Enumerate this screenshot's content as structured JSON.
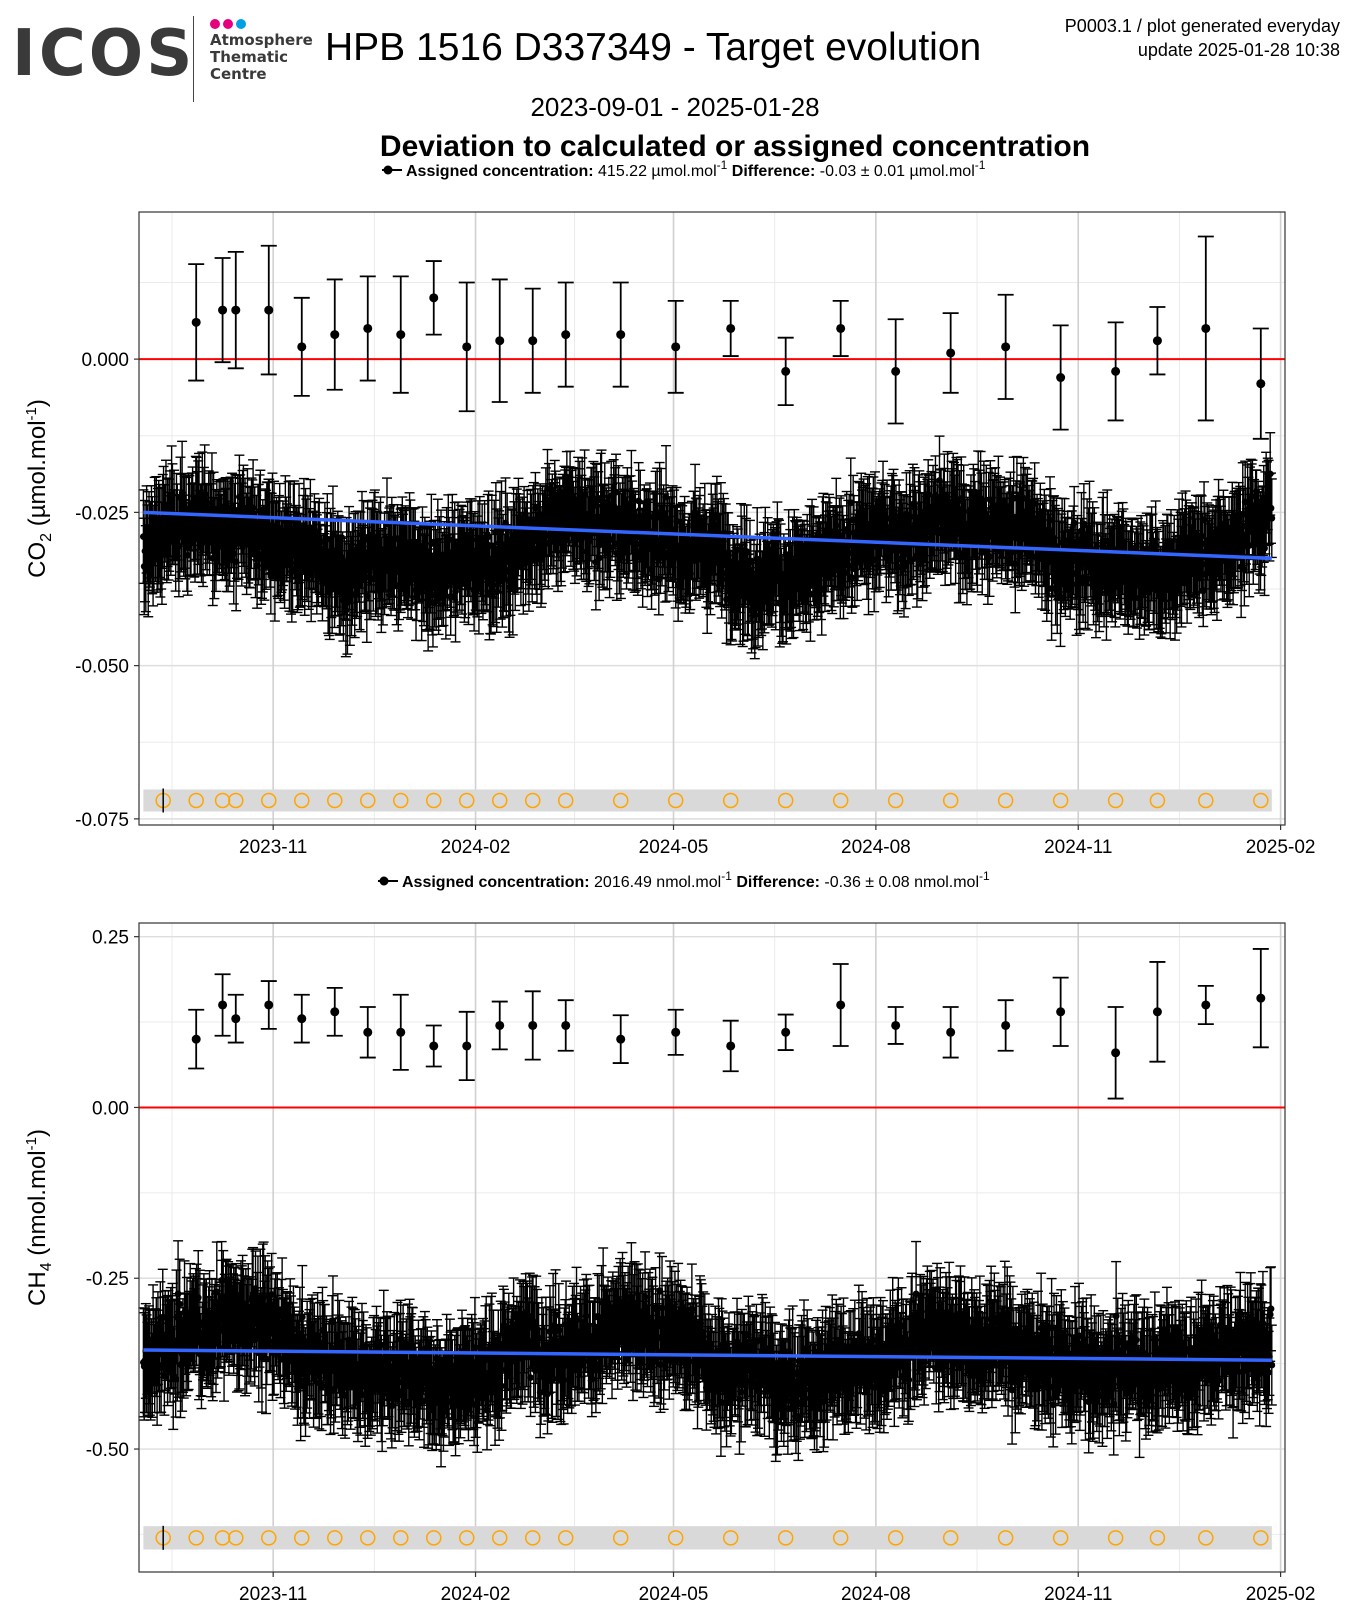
{
  "header": {
    "logo_text": "ICOS",
    "atc_line1": "Atmosphere",
    "atc_line2": "Thematic",
    "atc_line3": "Centre",
    "dot_colors": [
      "#e6007e",
      "#e6007e",
      "#00a0e3"
    ],
    "title": "HPB 1516 D337349 - Target evolution",
    "plot_id": "P0003.1 / plot generated everyday",
    "update": "update  2025-01-28 10:38",
    "date_range": "2023-09-01 - 2025-01-28",
    "subtitle": "Deviation to calculated or assigned concentration"
  },
  "colors": {
    "points": "#000000",
    "zero_line": "#ff0000",
    "trend_line": "#3366ff",
    "flag_circles": "#ffa500",
    "flag_band": "#d9d9d9",
    "grid": "#ebebeb"
  },
  "chart_data": [
    {
      "type": "scatter",
      "ylabel_species": "CO",
      "ylabel_sub": "2",
      "ylabel_unit_base": " (µmol.mol",
      "ylabel_unit_sup": "-1",
      "ylabel_unit_close": ")",
      "legend": {
        "assigned_label": "Assigned concentration:",
        "assigned_value": "415.22 µmol.mol",
        "assigned_sup": "-1",
        "difference_label": "Difference:",
        "difference_value": "-0.03 ± 0.01 µmol.mol",
        "difference_sup": "-1"
      },
      "xlim": [
        "2023-09-01",
        "2025-01-28"
      ],
      "ylim": [
        -0.076,
        0.024
      ],
      "y_ticks": [
        0.0,
        -0.025,
        -0.05,
        -0.075
      ],
      "y_tick_labels": [
        "0.000",
        "-0.025",
        "-0.050",
        "-0.075"
      ],
      "x_tick_labels": [
        "2023-11",
        "2024-02",
        "2024-05",
        "2024-08",
        "2024-11",
        "2025-02"
      ],
      "x_tick_dates": [
        "2023-11-01",
        "2024-02-01",
        "2024-05-01",
        "2024-08-01",
        "2024-11-01",
        "2025-02-01"
      ],
      "zero_line": 0,
      "trend": {
        "start": [
          "2023-09-03",
          -0.025
        ],
        "end": [
          "2025-01-28",
          -0.0325
        ]
      },
      "dense_series_mean": [
        "2023-09-03",
        -0.031,
        "2025-01-28",
        -0.029
      ],
      "flag_band_y": -0.072,
      "assigned_target_points": [
        {
          "x": "2023-09-27",
          "y": 0.006,
          "err": 0.0095
        },
        {
          "x": "2023-10-09",
          "y": 0.008,
          "err": 0.0085
        },
        {
          "x": "2023-10-15",
          "y": 0.008,
          "err": 0.0095
        },
        {
          "x": "2023-10-30",
          "y": 0.008,
          "err": 0.0105
        },
        {
          "x": "2023-11-14",
          "y": 0.002,
          "err": 0.008
        },
        {
          "x": "2023-11-29",
          "y": 0.004,
          "err": 0.009
        },
        {
          "x": "2023-12-14",
          "y": 0.005,
          "err": 0.0085
        },
        {
          "x": "2023-12-29",
          "y": 0.004,
          "err": 0.0095
        },
        {
          "x": "2024-01-13",
          "y": 0.01,
          "err": 0.006
        },
        {
          "x": "2024-01-28",
          "y": 0.002,
          "err": 0.0105
        },
        {
          "x": "2024-02-12",
          "y": 0.003,
          "err": 0.01
        },
        {
          "x": "2024-02-27",
          "y": 0.003,
          "err": 0.0085
        },
        {
          "x": "2024-03-13",
          "y": 0.004,
          "err": 0.0085
        },
        {
          "x": "2024-04-07",
          "y": 0.004,
          "err": 0.0085
        },
        {
          "x": "2024-05-02",
          "y": 0.002,
          "err": 0.0075
        },
        {
          "x": "2024-05-27",
          "y": 0.005,
          "err": 0.0045
        },
        {
          "x": "2024-06-21",
          "y": -0.002,
          "err": 0.0055
        },
        {
          "x": "2024-07-16",
          "y": 0.005,
          "err": 0.0045
        },
        {
          "x": "2024-08-10",
          "y": -0.002,
          "err": 0.0085
        },
        {
          "x": "2024-09-04",
          "y": 0.001,
          "err": 0.0065
        },
        {
          "x": "2024-09-29",
          "y": 0.002,
          "err": 0.0085
        },
        {
          "x": "2024-10-24",
          "y": -0.003,
          "err": 0.0085
        },
        {
          "x": "2024-11-18",
          "y": -0.002,
          "err": 0.008
        },
        {
          "x": "2024-12-07",
          "y": 0.003,
          "err": 0.0055
        },
        {
          "x": "2024-12-29",
          "y": 0.005,
          "err": 0.015
        },
        {
          "x": "2025-01-23",
          "y": -0.004,
          "err": 0.009
        }
      ],
      "flag_dates": [
        "2023-09-12",
        "2023-09-27",
        "2023-10-09",
        "2023-10-15",
        "2023-10-30",
        "2023-11-14",
        "2023-11-29",
        "2023-12-14",
        "2023-12-29",
        "2024-01-13",
        "2024-01-28",
        "2024-02-12",
        "2024-02-27",
        "2024-03-13",
        "2024-04-07",
        "2024-05-02",
        "2024-05-27",
        "2024-06-21",
        "2024-07-16",
        "2024-08-10",
        "2024-09-04",
        "2024-09-29",
        "2024-10-24",
        "2024-11-18",
        "2024-12-07",
        "2024-12-29",
        "2025-01-23"
      ]
    },
    {
      "type": "scatter",
      "ylabel_species": "CH",
      "ylabel_sub": "4",
      "ylabel_unit_base": " (nmol.mol",
      "ylabel_unit_sup": "-1",
      "ylabel_unit_close": ")",
      "legend": {
        "assigned_label": "Assigned concentration:",
        "assigned_value": "2016.49 nmol.mol",
        "assigned_sup": "-1",
        "difference_label": "Difference:",
        "difference_value": "-0.36 ± 0.08 nmol.mol",
        "difference_sup": "-1"
      },
      "xlim": [
        "2023-09-01",
        "2025-01-28"
      ],
      "ylim": [
        -0.68,
        0.27
      ],
      "y_ticks": [
        0.25,
        0.0,
        -0.25,
        -0.5
      ],
      "y_tick_labels": [
        "0.25",
        "0.00",
        "-0.25",
        "-0.50"
      ],
      "x_tick_labels": [
        "2023-11",
        "2024-02",
        "2024-05",
        "2024-08",
        "2024-11",
        "2025-02"
      ],
      "x_tick_dates": [
        "2023-11-01",
        "2024-02-01",
        "2024-05-01",
        "2024-08-01",
        "2024-11-01",
        "2025-02-01"
      ],
      "zero_line": 0,
      "trend": {
        "start": [
          "2023-09-03",
          -0.355
        ],
        "end": [
          "2025-01-28",
          -0.37
        ]
      },
      "dense_series_mean": [
        "2023-09-03",
        -0.37,
        "2025-01-28",
        -0.36
      ],
      "flag_band_y": -0.63,
      "assigned_target_points": [
        {
          "x": "2023-09-27",
          "y": 0.1,
          "err": 0.043
        },
        {
          "x": "2023-10-09",
          "y": 0.15,
          "err": 0.045
        },
        {
          "x": "2023-10-15",
          "y": 0.13,
          "err": 0.035
        },
        {
          "x": "2023-10-30",
          "y": 0.15,
          "err": 0.035
        },
        {
          "x": "2023-11-14",
          "y": 0.13,
          "err": 0.035
        },
        {
          "x": "2023-11-29",
          "y": 0.14,
          "err": 0.035
        },
        {
          "x": "2023-12-14",
          "y": 0.11,
          "err": 0.037
        },
        {
          "x": "2023-12-29",
          "y": 0.11,
          "err": 0.055
        },
        {
          "x": "2024-01-13",
          "y": 0.09,
          "err": 0.03
        },
        {
          "x": "2024-01-28",
          "y": 0.09,
          "err": 0.05
        },
        {
          "x": "2024-02-12",
          "y": 0.12,
          "err": 0.035
        },
        {
          "x": "2024-02-27",
          "y": 0.12,
          "err": 0.05
        },
        {
          "x": "2024-03-13",
          "y": 0.12,
          "err": 0.037
        },
        {
          "x": "2024-04-07",
          "y": 0.1,
          "err": 0.035
        },
        {
          "x": "2024-05-02",
          "y": 0.11,
          "err": 0.033
        },
        {
          "x": "2024-05-27",
          "y": 0.09,
          "err": 0.037
        },
        {
          "x": "2024-06-21",
          "y": 0.11,
          "err": 0.026
        },
        {
          "x": "2024-07-16",
          "y": 0.15,
          "err": 0.06
        },
        {
          "x": "2024-08-10",
          "y": 0.12,
          "err": 0.027
        },
        {
          "x": "2024-09-04",
          "y": 0.11,
          "err": 0.037
        },
        {
          "x": "2024-09-29",
          "y": 0.12,
          "err": 0.037
        },
        {
          "x": "2024-10-24",
          "y": 0.14,
          "err": 0.05
        },
        {
          "x": "2024-11-18",
          "y": 0.08,
          "err": 0.067
        },
        {
          "x": "2024-12-07",
          "y": 0.14,
          "err": 0.073
        },
        {
          "x": "2024-12-29",
          "y": 0.15,
          "err": 0.028
        },
        {
          "x": "2025-01-23",
          "y": 0.16,
          "err": 0.072
        }
      ],
      "flag_dates": [
        "2023-09-12",
        "2023-09-27",
        "2023-10-09",
        "2023-10-15",
        "2023-10-30",
        "2023-11-14",
        "2023-11-29",
        "2023-12-14",
        "2023-12-29",
        "2024-01-13",
        "2024-01-28",
        "2024-02-12",
        "2024-02-27",
        "2024-03-13",
        "2024-04-07",
        "2024-05-02",
        "2024-05-27",
        "2024-06-21",
        "2024-07-16",
        "2024-08-10",
        "2024-09-04",
        "2024-09-29",
        "2024-10-24",
        "2024-11-18",
        "2024-12-07",
        "2024-12-29",
        "2025-01-23"
      ]
    }
  ]
}
